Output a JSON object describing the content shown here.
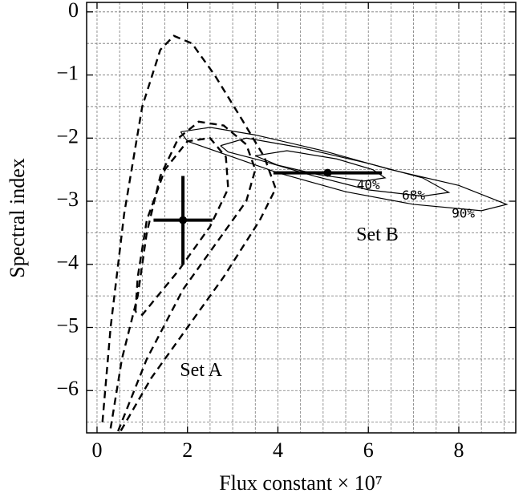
{
  "chart_data": {
    "type": "contour",
    "xlabel": "Flux constant × 10⁷",
    "ylabel": "Spectral index",
    "xlim": [
      -0.23,
      9.26
    ],
    "ylim": [
      -6.67,
      0.15
    ],
    "xticks": [
      0,
      2,
      4,
      6,
      8
    ],
    "yticks": [
      0,
      {
        "value": -1,
        "label": "−1"
      },
      {
        "value": -2,
        "label": "−2"
      },
      {
        "value": -3,
        "label": "−3"
      },
      {
        "value": -4,
        "label": "−4"
      },
      {
        "value": -5,
        "label": "−5"
      },
      {
        "value": -6,
        "label": "−6"
      }
    ],
    "xgrid": [
      0,
      0.5,
      1,
      1.5,
      2,
      2.5,
      3,
      3.5,
      4,
      4.5,
      5,
      5.5,
      6,
      6.5,
      7,
      7.5,
      8,
      8.5,
      9
    ],
    "ygrid": [
      0,
      -0.5,
      -1,
      -1.5,
      -2,
      -2.5,
      -3,
      -3.5,
      -4,
      -4.5,
      -5,
      -5.5,
      -6,
      -6.5
    ],
    "grid": true,
    "contours": [
      {
        "style": "dashed",
        "x": [
          0.12,
          0.3,
          0.6,
          1.0,
          1.4,
          1.7,
          2.1,
          2.6,
          3.2,
          3.7,
          3.95,
          3.6,
          2.8,
          2.0,
          1.2,
          0.5
        ],
        "y": [
          -6.5,
          -5.0,
          -3.2,
          -1.5,
          -0.6,
          -0.38,
          -0.5,
          -1.0,
          -1.7,
          -2.3,
          -2.8,
          -3.3,
          -4.2,
          -5.0,
          -5.8,
          -6.67
        ]
      },
      {
        "style": "dashed",
        "x": [
          0.3,
          0.55,
          0.9,
          1.1,
          1.4,
          1.8,
          2.25,
          2.8,
          3.3,
          3.5,
          3.3,
          2.7,
          1.9,
          1.1,
          0.45
        ],
        "y": [
          -6.6,
          -5.5,
          -4.5,
          -3.5,
          -2.6,
          -2.0,
          -1.74,
          -1.8,
          -2.1,
          -2.5,
          -3.0,
          -3.6,
          -4.4,
          -5.5,
          -6.67
        ]
      },
      {
        "style": "dashed",
        "x": [
          0.85,
          0.9,
          1.1,
          1.5,
          2.0,
          2.5,
          2.85,
          2.9,
          2.5,
          1.8,
          1.0,
          0.85
        ],
        "y": [
          -4.75,
          -4.2,
          -3.3,
          -2.5,
          -2.05,
          -2.0,
          -2.3,
          -2.8,
          -3.4,
          -4.1,
          -4.8,
          -4.75
        ]
      },
      {
        "style": "solid",
        "label": "90%",
        "label_x": 8.1,
        "label_y": -3.2,
        "x": [
          1.85,
          2.5,
          3.5,
          5,
          6.5,
          8,
          9.06,
          8.5,
          7,
          5.5,
          4,
          2.8,
          2.0,
          1.85
        ],
        "y": [
          -1.9,
          -1.83,
          -1.95,
          -2.2,
          -2.5,
          -2.75,
          -3.05,
          -3.15,
          -3.05,
          -2.85,
          -2.55,
          -2.25,
          -2.05,
          -1.9
        ]
      },
      {
        "style": "solid",
        "label": "68%",
        "label_x": 7.0,
        "label_y": -2.92,
        "x": [
          2.73,
          3.3,
          4.5,
          6,
          7.2,
          7.78,
          7.2,
          6,
          4.8,
          3.6,
          2.9,
          2.73
        ],
        "y": [
          -2.12,
          -2.0,
          -2.15,
          -2.4,
          -2.63,
          -2.86,
          -2.92,
          -2.82,
          -2.6,
          -2.35,
          -2.22,
          -2.12
        ]
      },
      {
        "style": "solid",
        "label": "40%",
        "label_x": 6.0,
        "label_y": -2.75,
        "x": [
          3.5,
          4.2,
          5.3,
          6.1,
          6.37,
          5.9,
          4.9,
          4.0,
          3.5
        ],
        "y": [
          -2.28,
          -2.2,
          -2.33,
          -2.5,
          -2.63,
          -2.68,
          -2.58,
          -2.43,
          -2.28
        ]
      }
    ],
    "points": [
      {
        "x": 1.9,
        "y": -3.3,
        "xerr": 0.65,
        "yerr": 0.7
      },
      {
        "x": 5.1,
        "y": -2.55,
        "xerr": 1.2,
        "yerr": 0.05
      }
    ],
    "annotations": [
      {
        "text": "Set A",
        "x": 2.3,
        "y": -5.7
      },
      {
        "text": "Set B",
        "x": 6.2,
        "y": -3.55
      }
    ]
  }
}
